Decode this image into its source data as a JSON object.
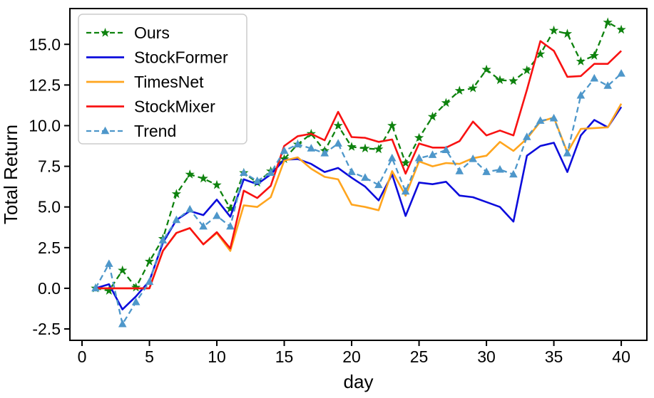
{
  "chart_data": {
    "type": "line",
    "title": "",
    "xlabel": "day",
    "ylabel": "Total Return",
    "xlim": [
      -0.9,
      41.9
    ],
    "ylim": [
      -3.2,
      17.2
    ],
    "grid": false,
    "background": "#ffffff",
    "axis_color": "#000000",
    "legend": {
      "position": "upper-left",
      "border_color": "#cccccc",
      "fill": "#ffffff"
    },
    "x_ticks": {
      "values": [
        0,
        5,
        10,
        15,
        20,
        25,
        30,
        35,
        40
      ],
      "labels": [
        "0",
        "5",
        "10",
        "15",
        "20",
        "25",
        "30",
        "35",
        "40"
      ]
    },
    "y_ticks": {
      "values": [
        -2.5,
        0,
        2.5,
        5,
        7.5,
        10,
        12.5,
        15
      ],
      "labels": [
        "-2.5",
        "0.0",
        "2.5",
        "5.0",
        "7.5",
        "10.0",
        "12.5",
        "15.0"
      ]
    },
    "x": [
      1,
      2,
      3,
      4,
      5,
      6,
      7,
      8,
      9,
      10,
      11,
      12,
      13,
      14,
      15,
      16,
      17,
      18,
      19,
      20,
      21,
      22,
      23,
      24,
      25,
      26,
      27,
      28,
      29,
      30,
      31,
      32,
      33,
      34,
      35,
      36,
      37,
      38,
      39,
      40
    ],
    "series": [
      {
        "name": "Ours",
        "color": "#0e820e",
        "style": "dashed",
        "marker": "star",
        "values": [
          0,
          -0.15,
          1.1,
          0.05,
          1.65,
          3.05,
          5.8,
          7.0,
          6.75,
          6.35,
          4.9,
          7.1,
          6.5,
          7.2,
          7.95,
          8.85,
          9.5,
          8.45,
          10.0,
          8.7,
          8.6,
          8.55,
          10.0,
          7.7,
          9.25,
          10.55,
          11.4,
          12.15,
          12.3,
          13.45,
          12.8,
          12.75,
          13.4,
          14.4,
          15.85,
          15.65,
          13.95,
          14.3,
          16.35,
          15.9
        ]
      },
      {
        "name": "StockFormer",
        "color": "#0c0cdc",
        "style": "solid",
        "marker": "none",
        "values": [
          0,
          0.25,
          -1.3,
          -0.5,
          0.45,
          2.8,
          4.2,
          4.75,
          4.5,
          5.45,
          4.4,
          6.7,
          6.4,
          7.0,
          7.9,
          7.95,
          7.65,
          7.15,
          7.4,
          6.8,
          6.25,
          5.4,
          7.0,
          4.45,
          6.5,
          6.4,
          6.55,
          5.7,
          5.6,
          5.3,
          5.0,
          4.1,
          8.15,
          8.75,
          8.95,
          7.15,
          9.4,
          10.35,
          9.9,
          11.15
        ]
      },
      {
        "name": "TimesNet",
        "color": "#ffa51e",
        "style": "solid",
        "marker": "none",
        "values": [
          0,
          0,
          0,
          0,
          0,
          2.3,
          3.4,
          3.7,
          2.7,
          3.4,
          2.3,
          5.1,
          5.0,
          5.6,
          7.85,
          8.05,
          7.35,
          6.85,
          6.7,
          5.15,
          5.0,
          4.8,
          7.2,
          5.7,
          7.8,
          7.5,
          7.7,
          7.65,
          8.0,
          8.15,
          9.0,
          8.45,
          9.2,
          10.25,
          10.5,
          8.35,
          9.8,
          9.85,
          9.9,
          11.35
        ]
      },
      {
        "name": "StockMixer",
        "color": "#f81212",
        "style": "solid",
        "marker": "none",
        "values": [
          0,
          0,
          0,
          0,
          0,
          2.3,
          3.4,
          3.7,
          2.7,
          3.45,
          2.45,
          6.0,
          5.55,
          6.3,
          8.75,
          9.35,
          9.5,
          9.1,
          10.85,
          9.3,
          9.25,
          9.0,
          9.15,
          7.05,
          8.9,
          8.65,
          8.65,
          9.05,
          10.25,
          9.4,
          9.7,
          9.4,
          12.2,
          15.2,
          14.6,
          13.0,
          13.05,
          13.8,
          13.8,
          14.6
        ]
      },
      {
        "name": "Trend",
        "color": "#4e97ca",
        "style": "dashed",
        "marker": "triangle",
        "values": [
          0,
          1.5,
          -2.2,
          -0.85,
          0.4,
          2.95,
          4.2,
          4.85,
          3.8,
          4.45,
          3.8,
          7.1,
          6.6,
          7.1,
          8.45,
          8.85,
          8.6,
          8.3,
          8.9,
          7.15,
          6.8,
          6.35,
          8.0,
          5.95,
          8.0,
          8.2,
          8.5,
          7.2,
          7.95,
          7.15,
          7.3,
          7.0,
          9.3,
          10.3,
          10.45,
          8.3,
          11.85,
          12.9,
          12.45,
          13.2
        ]
      }
    ]
  }
}
